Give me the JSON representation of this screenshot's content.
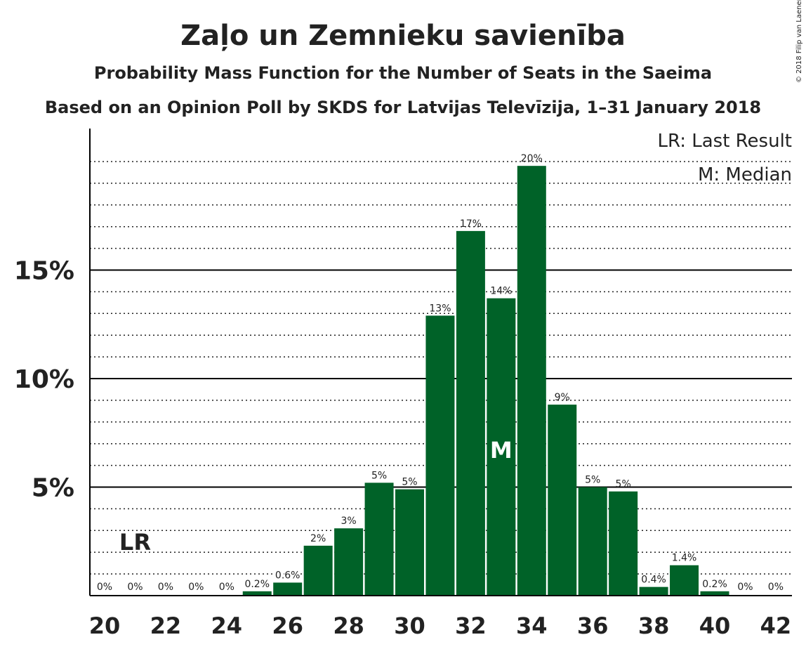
{
  "chart_data": {
    "type": "bar",
    "title": "Zaļo un Zemnieku savienība",
    "subtitle": "Probability Mass Function for the Number of Seats in the Saeima",
    "subtitle2": "Based on an Opinion Poll by SKDS for Latvijas Televīzija, 1–31 January 2018",
    "copyright": "© 2018 Filip van Laenen",
    "x": [
      20,
      21,
      22,
      23,
      24,
      25,
      26,
      27,
      28,
      29,
      30,
      31,
      32,
      33,
      34,
      35,
      36,
      37,
      38,
      39,
      40,
      41,
      42
    ],
    "values": [
      0,
      0,
      0,
      0,
      0,
      0.2,
      0.6,
      2.3,
      3.1,
      5.2,
      4.9,
      12.9,
      16.8,
      13.7,
      19.8,
      8.8,
      5.0,
      4.8,
      0.4,
      1.4,
      0.2,
      0,
      0
    ],
    "labels": [
      "0%",
      "0%",
      "0%",
      "0%",
      "0%",
      "0.2%",
      "0.6%",
      "2%",
      "3%",
      "5%",
      "5%",
      "13%",
      "17%",
      "14%",
      "20%",
      "9%",
      "5%",
      "5%",
      "0.4%",
      "1.4%",
      "0.2%",
      "0%",
      "0%"
    ],
    "xticks": [
      "20",
      "22",
      "24",
      "26",
      "28",
      "30",
      "32",
      "34",
      "36",
      "38",
      "40",
      "42"
    ],
    "yticks": [
      {
        "value": 5,
        "label": "5%"
      },
      {
        "value": 10,
        "label": "10%"
      },
      {
        "value": 15,
        "label": "15%"
      }
    ],
    "ylim": [
      0,
      21.5
    ],
    "bar_color": "#006228",
    "last_result": {
      "seat": 21,
      "marker": "LR"
    },
    "median": {
      "seat": 33,
      "marker": "M"
    },
    "legend": [
      "LR: Last Result",
      "M: Median"
    ],
    "grid": "dotted minor lines every 1%, solid lines at 5%, 10%, 15%",
    "legend_position": "top-right"
  }
}
